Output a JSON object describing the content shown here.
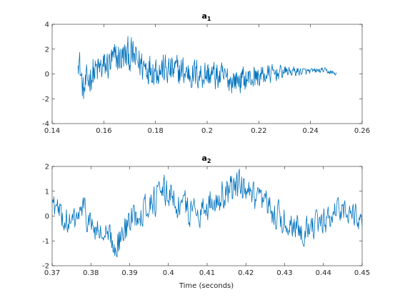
{
  "chart_data": [
    {
      "type": "line",
      "title_main": "a",
      "title_sub": "1",
      "xlabel": "",
      "ylabel": "",
      "xlim": [
        0.14,
        0.26
      ],
      "ylim": [
        -4,
        4
      ],
      "xticks": [
        0.14,
        0.16,
        0.18,
        0.2,
        0.22,
        0.24,
        0.26
      ],
      "xtick_labels": [
        "0.14",
        "0.16",
        "0.18",
        "0.2",
        "0.22",
        "0.24",
        "0.26"
      ],
      "yticks": [
        -4,
        -2,
        0,
        2,
        4
      ],
      "ytick_labels": [
        "-4",
        "-2",
        "0",
        "2",
        "4"
      ],
      "series": [
        {
          "color": "#0072BD",
          "x_start": 0.15,
          "x_end": 0.25,
          "envelope": [
            {
              "x": 0.15,
              "y": 1.8
            },
            {
              "x": 0.152,
              "y": -1.5
            },
            {
              "x": 0.155,
              "y": 0.0
            },
            {
              "x": 0.16,
              "y": 0.5
            },
            {
              "x": 0.165,
              "y": 1.2
            },
            {
              "x": 0.17,
              "y": 1.5
            },
            {
              "x": 0.175,
              "y": 0.7
            },
            {
              "x": 0.18,
              "y": 0.5
            },
            {
              "x": 0.185,
              "y": 0.2
            },
            {
              "x": 0.19,
              "y": 0.2
            },
            {
              "x": 0.195,
              "y": 0.0
            },
            {
              "x": 0.2,
              "y": 0.0
            },
            {
              "x": 0.205,
              "y": -0.3
            },
            {
              "x": 0.21,
              "y": -0.5
            },
            {
              "x": 0.215,
              "y": -0.4
            },
            {
              "x": 0.22,
              "y": -0.2
            },
            {
              "x": 0.225,
              "y": 0.0
            },
            {
              "x": 0.23,
              "y": 0.2
            },
            {
              "x": 0.235,
              "y": 0.2
            },
            {
              "x": 0.24,
              "y": 0.2
            },
            {
              "x": 0.245,
              "y": 0.3
            },
            {
              "x": 0.25,
              "y": 0.0
            }
          ],
          "noise_amplitude": [
            {
              "x": 0.15,
              "a": 1.4
            },
            {
              "x": 0.17,
              "a": 1.5
            },
            {
              "x": 0.2,
              "a": 1.3
            },
            {
              "x": 0.22,
              "a": 1.0
            },
            {
              "x": 0.23,
              "a": 0.5
            },
            {
              "x": 0.24,
              "a": 0.25
            },
            {
              "x": 0.25,
              "a": 0.2
            }
          ],
          "samples": 600
        }
      ]
    },
    {
      "type": "line",
      "title_main": "a",
      "title_sub": "2",
      "xlabel": "Time (seconds)",
      "ylabel": "",
      "xlim": [
        0.37,
        0.45
      ],
      "ylim": [
        -2,
        2
      ],
      "xticks": [
        0.37,
        0.38,
        0.39,
        0.4,
        0.41,
        0.42,
        0.43,
        0.44,
        0.45
      ],
      "xtick_labels": [
        "0.37",
        "0.38",
        "0.39",
        "0.4",
        "0.41",
        "0.42",
        "0.43",
        "0.44",
        "0.45"
      ],
      "yticks": [
        -2,
        -1,
        0,
        1,
        2
      ],
      "ytick_labels": [
        "-2",
        "-1",
        "0",
        "1",
        "2"
      ],
      "series": [
        {
          "color": "#0072BD",
          "x_start": 0.37,
          "x_end": 0.45,
          "envelope": [
            {
              "x": 0.37,
              "y": 0.6
            },
            {
              "x": 0.372,
              "y": 0.0
            },
            {
              "x": 0.375,
              "y": -0.4
            },
            {
              "x": 0.378,
              "y": 0.3
            },
            {
              "x": 0.38,
              "y": -0.4
            },
            {
              "x": 0.383,
              "y": -0.8
            },
            {
              "x": 0.386,
              "y": -1.1
            },
            {
              "x": 0.388,
              "y": -0.9
            },
            {
              "x": 0.39,
              "y": -0.2
            },
            {
              "x": 0.393,
              "y": 0.3
            },
            {
              "x": 0.396,
              "y": 0.6
            },
            {
              "x": 0.4,
              "y": 1.0
            },
            {
              "x": 0.403,
              "y": 0.4
            },
            {
              "x": 0.406,
              "y": 0.2
            },
            {
              "x": 0.41,
              "y": 0.4
            },
            {
              "x": 0.414,
              "y": 0.9
            },
            {
              "x": 0.418,
              "y": 1.2
            },
            {
              "x": 0.422,
              "y": 0.6
            },
            {
              "x": 0.426,
              "y": 0.3
            },
            {
              "x": 0.43,
              "y": -0.2
            },
            {
              "x": 0.435,
              "y": -0.5
            },
            {
              "x": 0.44,
              "y": -0.3
            },
            {
              "x": 0.444,
              "y": 0.4
            },
            {
              "x": 0.447,
              "y": 0.1
            },
            {
              "x": 0.45,
              "y": -0.2
            }
          ],
          "noise_amplitude": [
            {
              "x": 0.37,
              "a": 0.6
            },
            {
              "x": 0.4,
              "a": 0.7
            },
            {
              "x": 0.42,
              "a": 0.7
            },
            {
              "x": 0.45,
              "a": 0.5
            }
          ],
          "samples": 520
        }
      ]
    }
  ]
}
